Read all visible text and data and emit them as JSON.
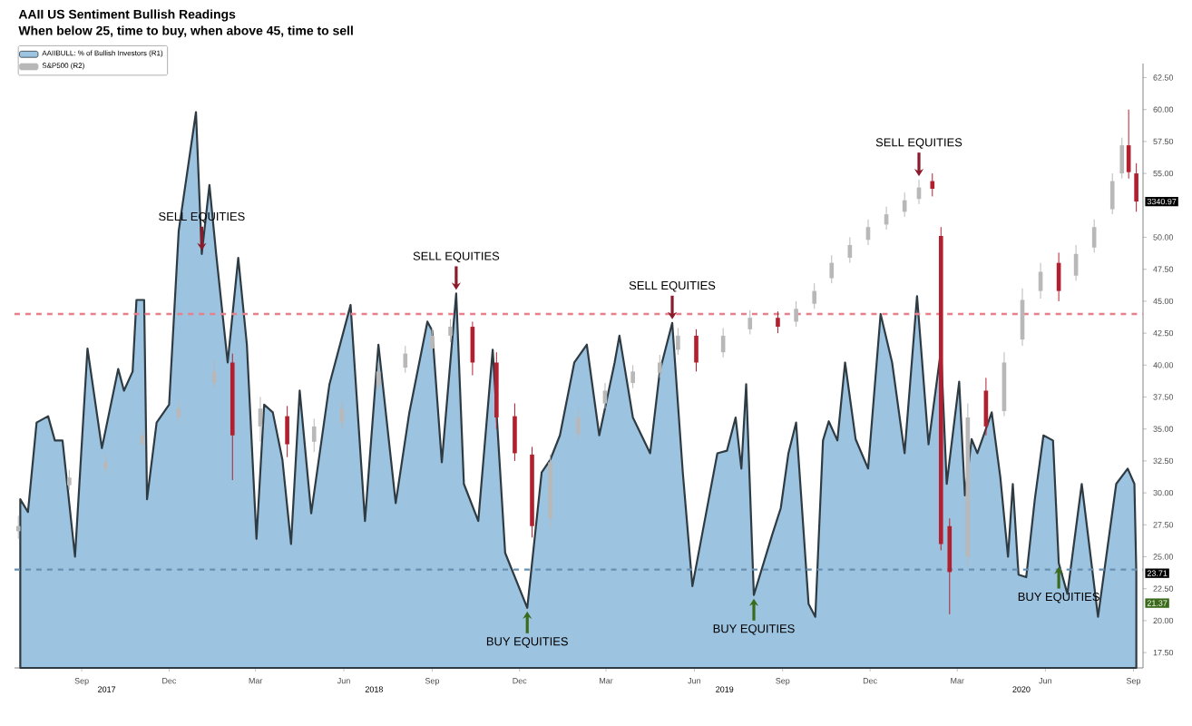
{
  "chart_data": {
    "type": "area",
    "title": "AAII US Sentiment Bullish Readings",
    "subtitle": "When below 25, time to buy, when above 45, time to sell",
    "xlim": [
      "2017-06-23",
      "2020-09-11"
    ],
    "ylim": [
      16.3,
      63.6
    ],
    "xticks": [
      {
        "value": "2017-09-01",
        "label": "Sep"
      },
      {
        "value": "2017-12-01",
        "label": "Dec"
      },
      {
        "value": "2018-03-01",
        "label": "Mar"
      },
      {
        "value": "2018-06-01",
        "label": "Jun"
      },
      {
        "value": "2018-09-01",
        "label": "Sep"
      },
      {
        "value": "2018-12-01",
        "label": "Dec"
      },
      {
        "value": "2019-03-01",
        "label": "Mar"
      },
      {
        "value": "2019-06-01",
        "label": "Jun"
      },
      {
        "value": "2019-09-01",
        "label": "Sep"
      },
      {
        "value": "2019-12-01",
        "label": "Dec"
      },
      {
        "value": "2020-03-01",
        "label": "Mar"
      },
      {
        "value": "2020-06-01",
        "label": "Jun"
      },
      {
        "value": "2020-09-01",
        "label": "Sep"
      }
    ],
    "yticks": [
      {
        "value": 17.5,
        "label": "17.50"
      },
      {
        "value": 20,
        "label": "20.00"
      },
      {
        "value": 22.5,
        "label": "22.50"
      },
      {
        "value": 25,
        "label": "25.00"
      },
      {
        "value": 27.5,
        "label": "27.50"
      },
      {
        "value": 30,
        "label": "30.00"
      },
      {
        "value": 32.5,
        "label": "32.50"
      },
      {
        "value": 35,
        "label": "35.00"
      },
      {
        "value": 37.5,
        "label": "37.50"
      },
      {
        "value": 40,
        "label": "40.00"
      },
      {
        "value": 42.5,
        "label": "42.50"
      },
      {
        "value": 45,
        "label": "45.00"
      },
      {
        "value": 47.5,
        "label": "47.50"
      },
      {
        "value": 50,
        "label": "50.00"
      },
      {
        "value": 55,
        "label": "55.00"
      },
      {
        "value": 57.5,
        "label": "57.50"
      },
      {
        "value": 60,
        "label": "60.00"
      },
      {
        "value": 62.5,
        "label": "62.50"
      }
    ],
    "legend": "top left",
    "series": [
      {
        "name": "AAIIBULL: % of Bullish Investors (R1)",
        "color": "#9cc3e0",
        "x": [
          "2017-06-29",
          "2017-07-07",
          "2017-07-16",
          "2017-07-28",
          "2017-08-04",
          "2017-08-12",
          "2017-08-25",
          "2017-09-07",
          "2017-09-22",
          "2017-10-09",
          "2017-10-15",
          "2017-10-24",
          "2017-10-28",
          "2017-11-05",
          "2017-11-08",
          "2017-11-18",
          "2017-12-01",
          "2017-12-11",
          "2017-12-29",
          "2018-01-04",
          "2018-01-12",
          "2018-01-19",
          "2018-01-31",
          "2018-02-11",
          "2018-02-20",
          "2018-03-02",
          "2018-03-10",
          "2018-03-19",
          "2018-03-29",
          "2018-04-07",
          "2018-04-16",
          "2018-04-28",
          "2018-05-17",
          "2018-06-08",
          "2018-06-23",
          "2018-07-07",
          "2018-07-25",
          "2018-08-08",
          "2018-08-27",
          "2018-09-01",
          "2018-09-11",
          "2018-09-26",
          "2018-10-04",
          "2018-10-19",
          "2018-11-03",
          "2018-11-16",
          "2018-12-09",
          "2018-12-24",
          "2019-01-02",
          "2019-01-12",
          "2019-01-27",
          "2019-02-09",
          "2019-02-22",
          "2019-03-10",
          "2019-03-15",
          "2019-03-29",
          "2019-04-16",
          "2019-04-26",
          "2019-05-09",
          "2019-05-20",
          "2019-05-30",
          "2019-06-16",
          "2019-06-25",
          "2019-07-05",
          "2019-07-14",
          "2019-07-20",
          "2019-07-25",
          "2019-08-02",
          "2019-08-21",
          "2019-08-30",
          "2019-09-07",
          "2019-09-15",
          "2019-09-28",
          "2019-10-05",
          "2019-10-13",
          "2019-10-19",
          "2019-10-28",
          "2019-11-05",
          "2019-11-16",
          "2019-11-29",
          "2019-12-12",
          "2019-12-24",
          "2020-01-06",
          "2020-01-19",
          "2020-01-31",
          "2020-02-13",
          "2020-02-19",
          "2020-03-03",
          "2020-03-09",
          "2020-03-16",
          "2020-03-22",
          "2020-04-06",
          "2020-04-15",
          "2020-04-23",
          "2020-04-28",
          "2020-05-04",
          "2020-05-12",
          "2020-05-21",
          "2020-05-30",
          "2020-06-09",
          "2020-06-15",
          "2020-06-24",
          "2020-07-09",
          "2020-07-26",
          "2020-08-14",
          "2020-08-26",
          "2020-09-02",
          "2020-09-04"
        ],
        "values": [
          29.5,
          28.5,
          35.5,
          36.0,
          34.1,
          34.1,
          25.0,
          41.3,
          33.5,
          39.7,
          38.0,
          39.5,
          45.1,
          45.1,
          29.5,
          35.5,
          36.9,
          50.5,
          59.8,
          48.7,
          54.1,
          48.7,
          40.2,
          48.4,
          41.6,
          26.4,
          36.9,
          36.3,
          32.6,
          26.0,
          38.0,
          28.4,
          38.5,
          44.7,
          27.8,
          41.6,
          29.2,
          36.2,
          43.4,
          42.7,
          32.4,
          45.6,
          30.7,
          27.8,
          41.2,
          25.3,
          21.0,
          31.6,
          32.6,
          34.5,
          40.2,
          41.6,
          34.5,
          40.2,
          42.3,
          35.9,
          33.1,
          39.5,
          43.3,
          31.6,
          22.7,
          29.5,
          33.1,
          33.3,
          35.9,
          31.9,
          38.5,
          22.0,
          26.7,
          28.8,
          33.1,
          35.5,
          21.3,
          20.3,
          34.1,
          35.6,
          34.1,
          40.2,
          34.2,
          31.9,
          44.0,
          40.2,
          33.1,
          45.4,
          33.8,
          41.2,
          30.7,
          38.7,
          29.8,
          34.2,
          33.1,
          36.3,
          31.2,
          25.0,
          30.7,
          23.6,
          23.4,
          29.5,
          34.5,
          34.1,
          24.5,
          22.1,
          30.7,
          20.3,
          30.7,
          31.9,
          30.7,
          23.71
        ],
        "value_labels": [
          null,
          null,
          null,
          null,
          null,
          null,
          null,
          null,
          null,
          null,
          null,
          null,
          null,
          null,
          null,
          null,
          null,
          null,
          null,
          null,
          null,
          null,
          null,
          null,
          null,
          null,
          null,
          null,
          null,
          null,
          null,
          null,
          null,
          null,
          null,
          null,
          null,
          null,
          null,
          null,
          null,
          null,
          null,
          null,
          null,
          null,
          null,
          null,
          null,
          null,
          null,
          null,
          null,
          null,
          null,
          null,
          null,
          null,
          null,
          null,
          null,
          null,
          null,
          null,
          null,
          null,
          null,
          null,
          null,
          null,
          null,
          null,
          null,
          null,
          null,
          null,
          null,
          null,
          null,
          null,
          null,
          null,
          null,
          null,
          null,
          null,
          null,
          null,
          null,
          null,
          null,
          null,
          null,
          null,
          null,
          null,
          null,
          null,
          null,
          null,
          null,
          null,
          null,
          null,
          null,
          null,
          null,
          "23.71"
        ]
      },
      {
        "name": "S&P500 (R2)",
        "type": "candlestick",
        "color": "#b8b8b8",
        "x": [
          "2017-06-27",
          "2017-08-19",
          "2017-09-26",
          "2017-11-03",
          "2017-12-11",
          "2018-01-17",
          "2018-02-05",
          "2018-03-06",
          "2018-04-03",
          "2018-05-01",
          "2018-05-30",
          "2018-07-07",
          "2018-08-04",
          "2018-09-01",
          "2018-09-20",
          "2018-10-13",
          "2018-11-07",
          "2018-11-26",
          "2018-12-14",
          "2019-01-02",
          "2019-01-31",
          "2019-02-28",
          "2019-03-29",
          "2019-04-26",
          "2019-05-15",
          "2019-06-03",
          "2019-07-01",
          "2019-07-29",
          "2019-08-27",
          "2019-09-15",
          "2019-10-04",
          "2019-10-22",
          "2019-11-10",
          "2019-11-29",
          "2019-12-18",
          "2020-01-06",
          "2020-01-21",
          "2020-02-04",
          "2020-02-13",
          "2020-02-22",
          "2020-03-12",
          "2020-03-31",
          "2020-04-19",
          "2020-05-08",
          "2020-05-27",
          "2020-06-15",
          "2020-07-03",
          "2020-07-22",
          "2020-08-10",
          "2020-08-20",
          "2020-08-27",
          "2020-09-04"
        ],
        "ohlc": [
          [
            27.0,
            28.2,
            26.4,
            27.4
          ],
          [
            30.6,
            31.8,
            30.2,
            31.2
          ],
          [
            31.9,
            33.0,
            31.5,
            32.4
          ],
          [
            33.8,
            35.0,
            33.4,
            34.5
          ],
          [
            35.9,
            37.2,
            35.5,
            36.6
          ],
          [
            38.6,
            40.4,
            38.2,
            39.5
          ],
          [
            40.2,
            40.9,
            31.0,
            34.5
          ],
          [
            35.2,
            37.5,
            34.0,
            36.6
          ],
          [
            36.0,
            36.8,
            32.8,
            33.8
          ],
          [
            34.0,
            35.8,
            33.2,
            35.2
          ],
          [
            35.5,
            37.2,
            35.0,
            36.6
          ],
          [
            38.4,
            40.2,
            38.0,
            39.5
          ],
          [
            39.8,
            41.5,
            39.4,
            40.9
          ],
          [
            41.3,
            42.9,
            41.0,
            42.3
          ],
          [
            42.3,
            43.6,
            41.8,
            43.0
          ],
          [
            43.0,
            43.4,
            39.2,
            40.2
          ],
          [
            40.2,
            41.0,
            35.0,
            35.9
          ],
          [
            36.0,
            37.0,
            32.5,
            33.1
          ],
          [
            33.0,
            33.6,
            26.5,
            27.4
          ],
          [
            28.0,
            33.0,
            27.2,
            32.4
          ],
          [
            34.6,
            36.5,
            34.2,
            35.9
          ],
          [
            37.0,
            38.6,
            36.6,
            38.0
          ],
          [
            38.6,
            40.0,
            38.2,
            39.5
          ],
          [
            39.4,
            40.8,
            39.0,
            40.2
          ],
          [
            41.2,
            42.9,
            40.8,
            42.3
          ],
          [
            42.3,
            42.8,
            39.5,
            40.2
          ],
          [
            41.0,
            42.9,
            40.6,
            42.3
          ],
          [
            42.8,
            44.3,
            42.4,
            43.7
          ],
          [
            43.7,
            44.2,
            42.5,
            43.0
          ],
          [
            43.4,
            45.0,
            43.0,
            44.4
          ],
          [
            44.8,
            46.4,
            44.4,
            45.8
          ],
          [
            46.8,
            48.6,
            46.4,
            48.0
          ],
          [
            48.4,
            50.0,
            48.0,
            49.4
          ],
          [
            49.8,
            51.4,
            49.4,
            50.8
          ],
          [
            51.0,
            52.4,
            50.6,
            51.8
          ],
          [
            52.0,
            53.5,
            51.6,
            52.9
          ],
          [
            53.0,
            54.5,
            52.6,
            53.9
          ],
          [
            54.4,
            55.0,
            53.2,
            53.8
          ],
          [
            50.1,
            50.8,
            25.5,
            26.0
          ],
          [
            27.4,
            28.0,
            20.5,
            23.8
          ],
          [
            25.0,
            37.0,
            24.2,
            35.9
          ],
          [
            38.0,
            39.0,
            34.5,
            35.2
          ],
          [
            36.4,
            41.0,
            36.0,
            40.2
          ],
          [
            42.0,
            46.0,
            41.5,
            45.1
          ],
          [
            45.8,
            48.0,
            45.2,
            47.3
          ],
          [
            48.0,
            48.8,
            45.0,
            45.8
          ],
          [
            47.0,
            49.4,
            46.6,
            48.7
          ],
          [
            49.2,
            51.4,
            48.8,
            50.8
          ],
          [
            52.2,
            55.0,
            51.8,
            54.4
          ],
          [
            55.0,
            57.8,
            54.6,
            57.2
          ],
          [
            57.2,
            60.0,
            54.6,
            55.1
          ],
          [
            55.0,
            55.8,
            52.0,
            52.8
          ]
        ],
        "colors": [
          "#b8b8b8",
          "#b8b8b8",
          "#b8b8b8",
          "#b8b8b8",
          "#b8b8b8",
          "#b8b8b8",
          "#b22030",
          "#b8b8b8",
          "#b22030",
          "#b8b8b8",
          "#b8b8b8",
          "#b8b8b8",
          "#b8b8b8",
          "#b8b8b8",
          "#b8b8b8",
          "#b22030",
          "#b22030",
          "#b22030",
          "#b22030",
          "#b8b8b8",
          "#b8b8b8",
          "#b8b8b8",
          "#b8b8b8",
          "#b8b8b8",
          "#b8b8b8",
          "#b22030",
          "#b8b8b8",
          "#b8b8b8",
          "#b22030",
          "#b8b8b8",
          "#b8b8b8",
          "#b8b8b8",
          "#b8b8b8",
          "#b8b8b8",
          "#b8b8b8",
          "#b8b8b8",
          "#b8b8b8",
          "#b22030",
          "#b22030",
          "#b22030",
          "#b8b8b8",
          "#b22030",
          "#b8b8b8",
          "#b8b8b8",
          "#b8b8b8",
          "#b22030",
          "#b8b8b8",
          "#b8b8b8",
          "#b8b8b8",
          "#b8b8b8",
          "#b22030",
          "#b22030"
        ],
        "value_labels": [
          null,
          null,
          null,
          null,
          null,
          null,
          null,
          null,
          null,
          null,
          null,
          null,
          null,
          null,
          null,
          null,
          null,
          null,
          null,
          null,
          null,
          null,
          null,
          null,
          null,
          null,
          null,
          null,
          null,
          null,
          null,
          null,
          null,
          null,
          null,
          null,
          null,
          null,
          null,
          null,
          null,
          null,
          null,
          null,
          null,
          null,
          null,
          null,
          null,
          null,
          null,
          "3340.97"
        ]
      }
    ],
    "ref_lines": [
      {
        "axis": "y",
        "value": 44,
        "color": "#e8808c",
        "line_style": "dashed"
      },
      {
        "axis": "y",
        "value": 24,
        "color": "#6a8fb0",
        "line_style": "dashed"
      }
    ],
    "annotations": [
      {
        "text": "SELL EQUITIES",
        "x": "2018-01-04",
        "y": 48.7
      },
      {
        "text": "SELL EQUITIES",
        "x": "2018-09-26",
        "y": 45.6
      },
      {
        "text": "SELL EQUITIES",
        "x": "2019-05-09",
        "y": 43.3
      },
      {
        "text": "SELL EQUITIES",
        "x": "2020-01-21",
        "y": 54.5
      },
      {
        "text": "BUY EQUITIES",
        "x": "2018-12-09",
        "y": 21.0
      },
      {
        "text": "BUY EQUITIES",
        "x": "2019-08-02",
        "y": 22.0
      },
      {
        "text": "BUY EQUITIES",
        "x": "2020-06-15",
        "y": 24.5
      },
      "2017",
      "2018",
      "2019",
      "2020",
      {
        "text": "21.37",
        "y": 21.37
      }
    ]
  }
}
